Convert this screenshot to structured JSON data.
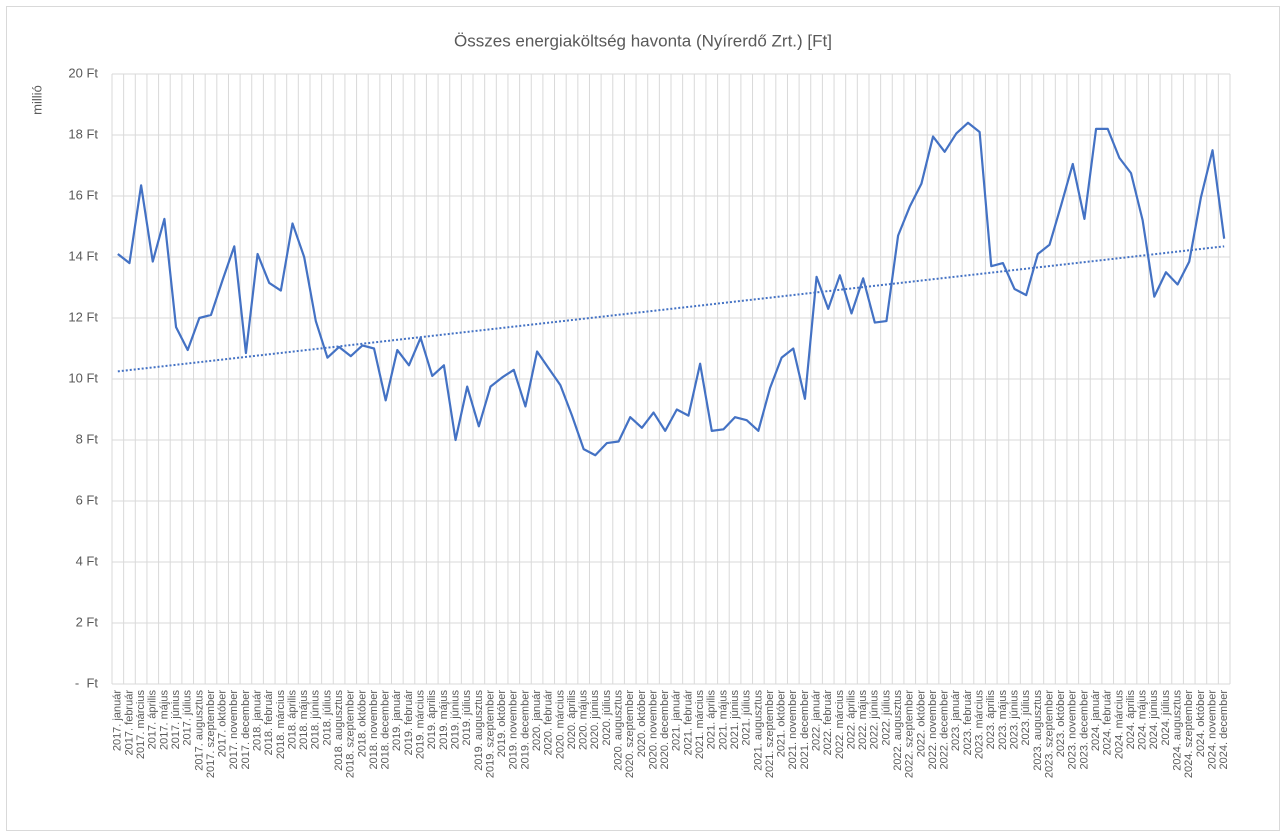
{
  "chart_data": {
    "type": "line",
    "title": "Összes energiaköltség havonta (Nyírerdő Zrt.) [Ft]",
    "y_label": "millió",
    "categories": [
      "2017. január",
      "2017. február",
      "2017. március",
      "2017. április",
      "2017. május",
      "2017. június",
      "2017. július",
      "2017. augusztus",
      "2017. szeptember",
      "2017. október",
      "2017. november",
      "2017. december",
      "2018. január",
      "2018. február",
      "2018. március",
      "2018. április",
      "2018. május",
      "2018. június",
      "2018. július",
      "2018. augusztus",
      "2018. szeptember",
      "2018. október",
      "2018. november",
      "2018. december",
      "2019. január",
      "2019. február",
      "2019. március",
      "2019. április",
      "2019. május",
      "2019. június",
      "2019. július",
      "2019. augusztus",
      "2019. szeptember",
      "2019. október",
      "2019. november",
      "2019. december",
      "2020. január",
      "2020. február",
      "2020. március",
      "2020. április",
      "2020. május",
      "2020. június",
      "2020. július",
      "2020. augusztus",
      "2020. szeptember",
      "2020. október",
      "2020. november",
      "2020. december",
      "2021. január",
      "2021. február",
      "2021. március",
      "2021. április",
      "2021. május",
      "2021. június",
      "2021. július",
      "2021. augusztus",
      "2021. szeptember",
      "2021. október",
      "2021. november",
      "2021. december",
      "2022. január",
      "2022. február",
      "2022. március",
      "2022. április",
      "2022. május",
      "2022. június",
      "2022. július",
      "2022. augusztus",
      "2022. szeptember",
      "2022. október",
      "2022. november",
      "2022. december",
      "2023. január",
      "2023. február",
      "2023. március",
      "2023. április",
      "2023. május",
      "2023. június",
      "2023. július",
      "2023. augusztus",
      "2023. szeptember",
      "2023. október",
      "2023. november",
      "2023. december",
      "2024. január",
      "2024. február",
      "2024. március",
      "2024. április",
      "2024. május",
      "2024. június",
      "2024. július",
      "2024. augusztus",
      "2024. szeptember",
      "2024. október",
      "2024. november",
      "2024. december"
    ],
    "values": [
      14.1,
      13.8,
      16.35,
      13.85,
      15.25,
      11.7,
      10.95,
      12.0,
      12.1,
      13.25,
      14.35,
      10.85,
      14.1,
      13.15,
      12.9,
      15.1,
      14.0,
      11.9,
      10.7,
      11.05,
      10.75,
      11.1,
      11.0,
      9.3,
      10.95,
      10.45,
      11.35,
      10.1,
      10.45,
      8.0,
      9.75,
      8.45,
      9.75,
      10.05,
      10.3,
      9.1,
      10.9,
      10.35,
      9.8,
      8.8,
      7.7,
      7.5,
      7.9,
      7.95,
      8.75,
      8.4,
      8.9,
      8.3,
      9.0,
      8.8,
      10.5,
      8.3,
      8.35,
      8.75,
      8.65,
      8.3,
      9.7,
      10.7,
      11.0,
      9.35,
      13.35,
      12.3,
      13.4,
      12.15,
      13.3,
      11.85,
      11.9,
      14.7,
      15.65,
      16.4,
      17.95,
      17.45,
      18.05,
      18.4,
      18.1,
      13.7,
      13.8,
      12.95,
      12.75,
      14.1,
      14.4,
      15.7,
      17.05,
      15.25,
      18.2,
      18.2,
      17.25,
      16.75,
      15.2,
      12.7,
      13.5,
      13.1,
      13.85,
      15.95,
      17.5,
      14.6
    ],
    "color": "#4472c4",
    "trendline": {
      "start": 10.25,
      "end": 14.35,
      "style": "dotted"
    },
    "ylim": [
      0,
      20
    ],
    "yticks": [
      {
        "value": 0,
        "label": "-  Ft"
      },
      {
        "value": 2,
        "label": "2 Ft"
      },
      {
        "value": 4,
        "label": "4 Ft"
      },
      {
        "value": 6,
        "label": "6 Ft"
      },
      {
        "value": 8,
        "label": "8 Ft"
      },
      {
        "value": 10,
        "label": "10 Ft"
      },
      {
        "value": 12,
        "label": "12 Ft"
      },
      {
        "value": 14,
        "label": "14 Ft"
      },
      {
        "value": 16,
        "label": "16 Ft"
      },
      {
        "value": 18,
        "label": "18 Ft"
      },
      {
        "value": 20,
        "label": "20 Ft"
      }
    ],
    "grid": true
  }
}
